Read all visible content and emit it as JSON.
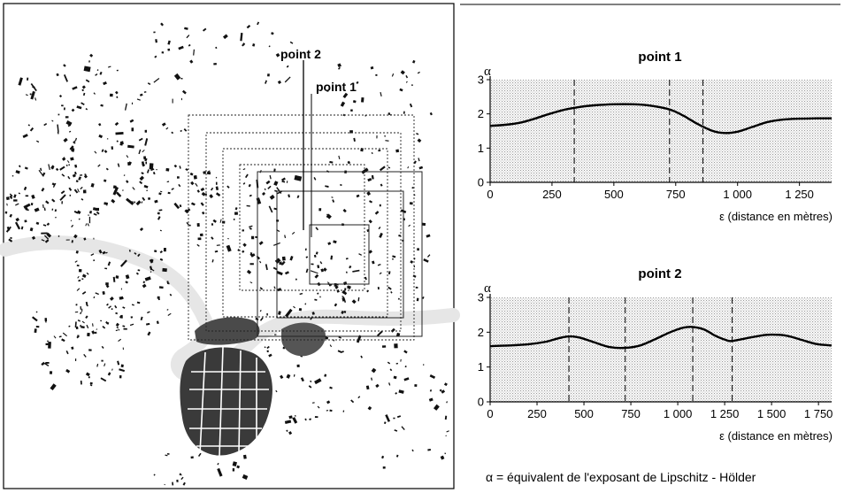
{
  "map": {
    "labels": {
      "point2": "point 2",
      "point1": "point 1"
    }
  },
  "chart_data": [
    {
      "type": "line",
      "title": "point 1",
      "ylabel": "α",
      "xlabel": "ε (distance en mètres)",
      "xlim": [
        0,
        1380
      ],
      "ylim": [
        0,
        3
      ],
      "xticks": [
        0,
        250,
        500,
        750,
        1000,
        1250
      ],
      "xtick_labels": [
        "0",
        "250",
        "500",
        "750",
        "1 000",
        "1 250"
      ],
      "yticks": [
        0,
        1,
        2,
        3
      ],
      "ytick_labels": [
        "0",
        "1",
        "2",
        "3"
      ],
      "dashed_lines_x": [
        340,
        725,
        860
      ],
      "grid": false,
      "series": [
        {
          "values": [
            [
              0,
              1.65
            ],
            [
              60,
              1.68
            ],
            [
              120,
              1.74
            ],
            [
              180,
              1.86
            ],
            [
              240,
              2.0
            ],
            [
              300,
              2.12
            ],
            [
              360,
              2.2
            ],
            [
              420,
              2.25
            ],
            [
              500,
              2.28
            ],
            [
              580,
              2.28
            ],
            [
              650,
              2.24
            ],
            [
              725,
              2.13
            ],
            [
              780,
              1.95
            ],
            [
              840,
              1.7
            ],
            [
              900,
              1.5
            ],
            [
              950,
              1.44
            ],
            [
              1000,
              1.48
            ],
            [
              1060,
              1.62
            ],
            [
              1120,
              1.76
            ],
            [
              1180,
              1.83
            ],
            [
              1250,
              1.86
            ],
            [
              1320,
              1.87
            ],
            [
              1380,
              1.87
            ]
          ]
        }
      ]
    },
    {
      "type": "line",
      "title": "point 2",
      "ylabel": "α",
      "xlabel": "ε (distance en mètres)",
      "xlim": [
        0,
        1820
      ],
      "ylim": [
        0,
        3
      ],
      "xticks": [
        0,
        250,
        500,
        750,
        1000,
        1250,
        1500,
        1750
      ],
      "xtick_labels": [
        "0",
        "250",
        "500",
        "750",
        "1 000",
        "1 250",
        "1 500",
        "1 750"
      ],
      "yticks": [
        0,
        1,
        2,
        3
      ],
      "ytick_labels": [
        "0",
        "1",
        "2",
        "3"
      ],
      "dashed_lines_x": [
        420,
        720,
        1080,
        1290
      ],
      "grid": false,
      "series": [
        {
          "values": [
            [
              0,
              1.6
            ],
            [
              100,
              1.62
            ],
            [
              200,
              1.65
            ],
            [
              300,
              1.73
            ],
            [
              360,
              1.82
            ],
            [
              420,
              1.88
            ],
            [
              480,
              1.84
            ],
            [
              560,
              1.7
            ],
            [
              640,
              1.57
            ],
            [
              720,
              1.55
            ],
            [
              800,
              1.62
            ],
            [
              880,
              1.8
            ],
            [
              960,
              2.0
            ],
            [
              1030,
              2.13
            ],
            [
              1080,
              2.15
            ],
            [
              1140,
              2.08
            ],
            [
              1200,
              1.9
            ],
            [
              1260,
              1.77
            ],
            [
              1290,
              1.75
            ],
            [
              1360,
              1.82
            ],
            [
              1440,
              1.9
            ],
            [
              1500,
              1.93
            ],
            [
              1580,
              1.9
            ],
            [
              1660,
              1.78
            ],
            [
              1740,
              1.66
            ],
            [
              1820,
              1.62
            ]
          ]
        }
      ]
    }
  ],
  "legend": {
    "text": "α = équivalent de l'exposant de Lipschitz - Hölder"
  }
}
